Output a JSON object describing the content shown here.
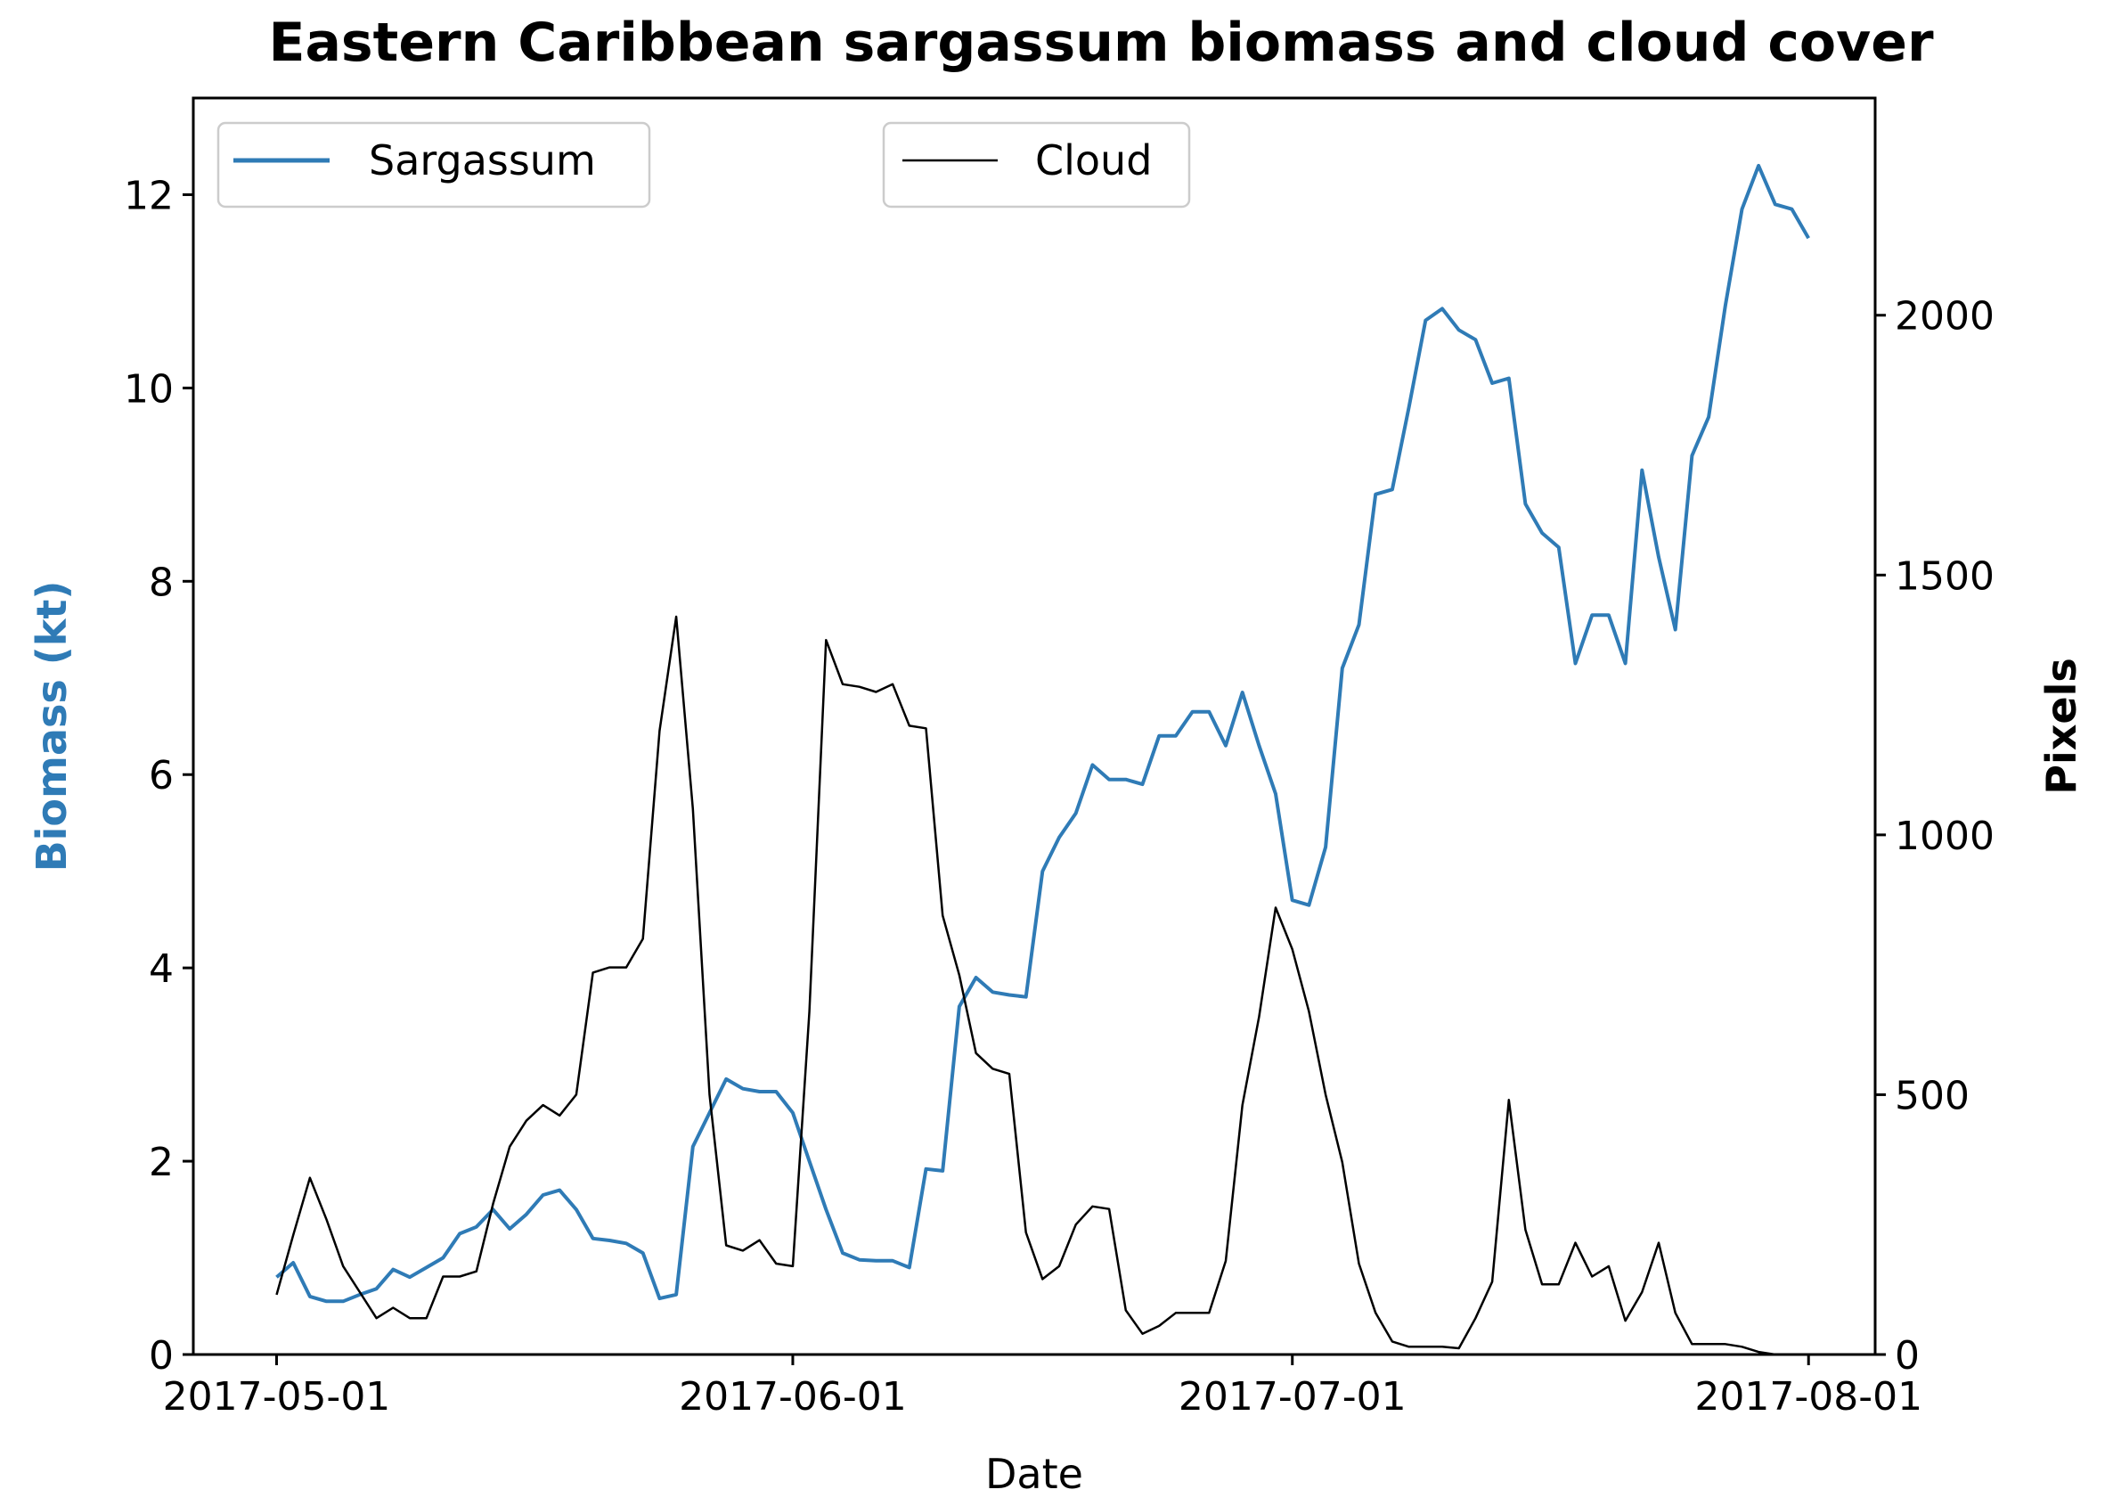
{
  "chart_data": {
    "type": "line",
    "title": "Eastern Caribbean sargassum biomass and cloud cover",
    "xlabel": "Date",
    "ylabel": "Biomass (kt)",
    "y2label": "Pixels",
    "x_range": [
      "2017-04-26",
      "2017-08-05"
    ],
    "x_ticks": [
      "2017-05-01",
      "2017-06-01",
      "2017-07-01",
      "2017-08-01"
    ],
    "ylim": [
      0,
      13
    ],
    "y_ticks": [
      0,
      2,
      4,
      6,
      8,
      10,
      12
    ],
    "y2lim": [
      0,
      2418
    ],
    "y2_ticks": [
      0,
      500,
      1000,
      1500,
      2000
    ],
    "grid": false,
    "colors": {
      "Sargassum": "#2f7bb6",
      "Cloud": "#000000",
      "ylabel": "#2f7bb6"
    },
    "legends": [
      {
        "entry": "Sargassum",
        "placement": "upper-left"
      },
      {
        "entry": "Cloud",
        "placement": "upper-center"
      }
    ],
    "series": [
      {
        "name": "Sargassum",
        "axis": "left",
        "points": [
          [
            "2017-05-01",
            0.8
          ],
          [
            "2017-05-02",
            0.95
          ],
          [
            "2017-05-03",
            0.6
          ],
          [
            "2017-05-04",
            0.55
          ],
          [
            "2017-05-05",
            0.55
          ],
          [
            "2017-05-06",
            0.62
          ],
          [
            "2017-05-07",
            0.68
          ],
          [
            "2017-05-08",
            0.88
          ],
          [
            "2017-05-09",
            0.8
          ],
          [
            "2017-05-10",
            0.9
          ],
          [
            "2017-05-11",
            1.0
          ],
          [
            "2017-05-12",
            1.25
          ],
          [
            "2017-05-13",
            1.32
          ],
          [
            "2017-05-14",
            1.5
          ],
          [
            "2017-05-15",
            1.3
          ],
          [
            "2017-05-16",
            1.45
          ],
          [
            "2017-05-17",
            1.65
          ],
          [
            "2017-05-18",
            1.7
          ],
          [
            "2017-05-19",
            1.5
          ],
          [
            "2017-05-20",
            1.2
          ],
          [
            "2017-05-21",
            1.18
          ],
          [
            "2017-05-22",
            1.15
          ],
          [
            "2017-05-23",
            1.05
          ],
          [
            "2017-05-24",
            0.58
          ],
          [
            "2017-05-25",
            0.62
          ],
          [
            "2017-05-26",
            2.15
          ],
          [
            "2017-05-27",
            2.5
          ],
          [
            "2017-05-28",
            2.85
          ],
          [
            "2017-05-29",
            2.75
          ],
          [
            "2017-05-30",
            2.72
          ],
          [
            "2017-05-31",
            2.72
          ],
          [
            "2017-06-01",
            2.5
          ],
          [
            "2017-06-02",
            2.0
          ],
          [
            "2017-06-03",
            1.5
          ],
          [
            "2017-06-04",
            1.05
          ],
          [
            "2017-06-05",
            0.98
          ],
          [
            "2017-06-06",
            0.97
          ],
          [
            "2017-06-07",
            0.97
          ],
          [
            "2017-06-08",
            0.9
          ],
          [
            "2017-06-09",
            1.92
          ],
          [
            "2017-06-10",
            1.9
          ],
          [
            "2017-06-11",
            3.6
          ],
          [
            "2017-06-12",
            3.9
          ],
          [
            "2017-06-13",
            3.75
          ],
          [
            "2017-06-14",
            3.72
          ],
          [
            "2017-06-15",
            3.7
          ],
          [
            "2017-06-16",
            5.0
          ],
          [
            "2017-06-17",
            5.35
          ],
          [
            "2017-06-18",
            5.6
          ],
          [
            "2017-06-19",
            6.1
          ],
          [
            "2017-06-20",
            5.95
          ],
          [
            "2017-06-21",
            5.95
          ],
          [
            "2017-06-22",
            5.9
          ],
          [
            "2017-06-23",
            6.4
          ],
          [
            "2017-06-24",
            6.4
          ],
          [
            "2017-06-25",
            6.65
          ],
          [
            "2017-06-26",
            6.65
          ],
          [
            "2017-06-27",
            6.3
          ],
          [
            "2017-06-28",
            6.85
          ],
          [
            "2017-06-29",
            6.3
          ],
          [
            "2017-06-30",
            5.8
          ],
          [
            "2017-07-01",
            4.7
          ],
          [
            "2017-07-02",
            4.65
          ],
          [
            "2017-07-03",
            5.25
          ],
          [
            "2017-07-04",
            7.1
          ],
          [
            "2017-07-05",
            7.55
          ],
          [
            "2017-07-06",
            8.9
          ],
          [
            "2017-07-07",
            8.95
          ],
          [
            "2017-07-08",
            9.8
          ],
          [
            "2017-07-09",
            10.7
          ],
          [
            "2017-07-10",
            10.82
          ],
          [
            "2017-07-11",
            10.6
          ],
          [
            "2017-07-12",
            10.5
          ],
          [
            "2017-07-13",
            10.05
          ],
          [
            "2017-07-14",
            10.1
          ],
          [
            "2017-07-15",
            8.8
          ],
          [
            "2017-07-16",
            8.5
          ],
          [
            "2017-07-17",
            8.35
          ],
          [
            "2017-07-18",
            7.15
          ],
          [
            "2017-07-19",
            7.65
          ],
          [
            "2017-07-20",
            7.65
          ],
          [
            "2017-07-21",
            7.15
          ],
          [
            "2017-07-22",
            9.15
          ],
          [
            "2017-07-23",
            8.25
          ],
          [
            "2017-07-24",
            7.5
          ],
          [
            "2017-07-25",
            9.3
          ],
          [
            "2017-07-26",
            9.7
          ],
          [
            "2017-07-27",
            10.85
          ],
          [
            "2017-07-28",
            11.85
          ],
          [
            "2017-07-29",
            12.3
          ],
          [
            "2017-07-30",
            11.9
          ],
          [
            "2017-07-31",
            11.85
          ],
          [
            "2017-08-01",
            11.55
          ]
        ]
      },
      {
        "name": "Cloud",
        "axis": "right",
        "points": [
          [
            "2017-05-01",
            115
          ],
          [
            "2017-05-02",
            230
          ],
          [
            "2017-05-03",
            340
          ],
          [
            "2017-05-04",
            260
          ],
          [
            "2017-05-05",
            170
          ],
          [
            "2017-05-06",
            120
          ],
          [
            "2017-05-07",
            70
          ],
          [
            "2017-05-08",
            90
          ],
          [
            "2017-05-09",
            70
          ],
          [
            "2017-05-10",
            70
          ],
          [
            "2017-05-11",
            150
          ],
          [
            "2017-05-12",
            150
          ],
          [
            "2017-05-13",
            160
          ],
          [
            "2017-05-14",
            290
          ],
          [
            "2017-05-15",
            400
          ],
          [
            "2017-05-16",
            450
          ],
          [
            "2017-05-17",
            480
          ],
          [
            "2017-05-18",
            460
          ],
          [
            "2017-05-19",
            500
          ],
          [
            "2017-05-20",
            735
          ],
          [
            "2017-05-21",
            745
          ],
          [
            "2017-05-22",
            745
          ],
          [
            "2017-05-23",
            800
          ],
          [
            "2017-05-24",
            1200
          ],
          [
            "2017-05-25",
            1420
          ],
          [
            "2017-05-26",
            1050
          ],
          [
            "2017-05-27",
            500
          ],
          [
            "2017-05-28",
            210
          ],
          [
            "2017-05-29",
            200
          ],
          [
            "2017-05-30",
            220
          ],
          [
            "2017-05-31",
            175
          ],
          [
            "2017-06-01",
            170
          ],
          [
            "2017-06-02",
            660
          ],
          [
            "2017-06-03",
            1375
          ],
          [
            "2017-06-04",
            1290
          ],
          [
            "2017-06-05",
            1285
          ],
          [
            "2017-06-06",
            1275
          ],
          [
            "2017-06-07",
            1290
          ],
          [
            "2017-06-08",
            1210
          ],
          [
            "2017-06-09",
            1205
          ],
          [
            "2017-06-10",
            845
          ],
          [
            "2017-06-11",
            730
          ],
          [
            "2017-06-12",
            580
          ],
          [
            "2017-06-13",
            550
          ],
          [
            "2017-06-14",
            540
          ],
          [
            "2017-06-15",
            235
          ],
          [
            "2017-06-16",
            145
          ],
          [
            "2017-06-17",
            170
          ],
          [
            "2017-06-18",
            250
          ],
          [
            "2017-06-19",
            285
          ],
          [
            "2017-06-20",
            280
          ],
          [
            "2017-06-21",
            85
          ],
          [
            "2017-06-22",
            40
          ],
          [
            "2017-06-23",
            55
          ],
          [
            "2017-06-24",
            80
          ],
          [
            "2017-06-25",
            80
          ],
          [
            "2017-06-26",
            80
          ],
          [
            "2017-06-27",
            180
          ],
          [
            "2017-06-28",
            480
          ],
          [
            "2017-06-29",
            650
          ],
          [
            "2017-06-30",
            860
          ],
          [
            "2017-07-01",
            780
          ],
          [
            "2017-07-02",
            660
          ],
          [
            "2017-07-03",
            500
          ],
          [
            "2017-07-04",
            370
          ],
          [
            "2017-07-05",
            175
          ],
          [
            "2017-07-06",
            80
          ],
          [
            "2017-07-07",
            25
          ],
          [
            "2017-07-08",
            15
          ],
          [
            "2017-07-09",
            15
          ],
          [
            "2017-07-10",
            15
          ],
          [
            "2017-07-11",
            12
          ],
          [
            "2017-07-12",
            70
          ],
          [
            "2017-07-13",
            140
          ],
          [
            "2017-07-14",
            490
          ],
          [
            "2017-07-15",
            240
          ],
          [
            "2017-07-16",
            135
          ],
          [
            "2017-07-17",
            135
          ],
          [
            "2017-07-18",
            215
          ],
          [
            "2017-07-19",
            150
          ],
          [
            "2017-07-20",
            170
          ],
          [
            "2017-07-21",
            65
          ],
          [
            "2017-07-22",
            120
          ],
          [
            "2017-07-23",
            215
          ],
          [
            "2017-07-24",
            80
          ],
          [
            "2017-07-25",
            20
          ],
          [
            "2017-07-26",
            20
          ],
          [
            "2017-07-27",
            20
          ],
          [
            "2017-07-28",
            15
          ],
          [
            "2017-07-29",
            5
          ],
          [
            "2017-07-30",
            0
          ],
          [
            "2017-07-31",
            0
          ],
          [
            "2017-08-01",
            0
          ]
        ]
      }
    ]
  }
}
